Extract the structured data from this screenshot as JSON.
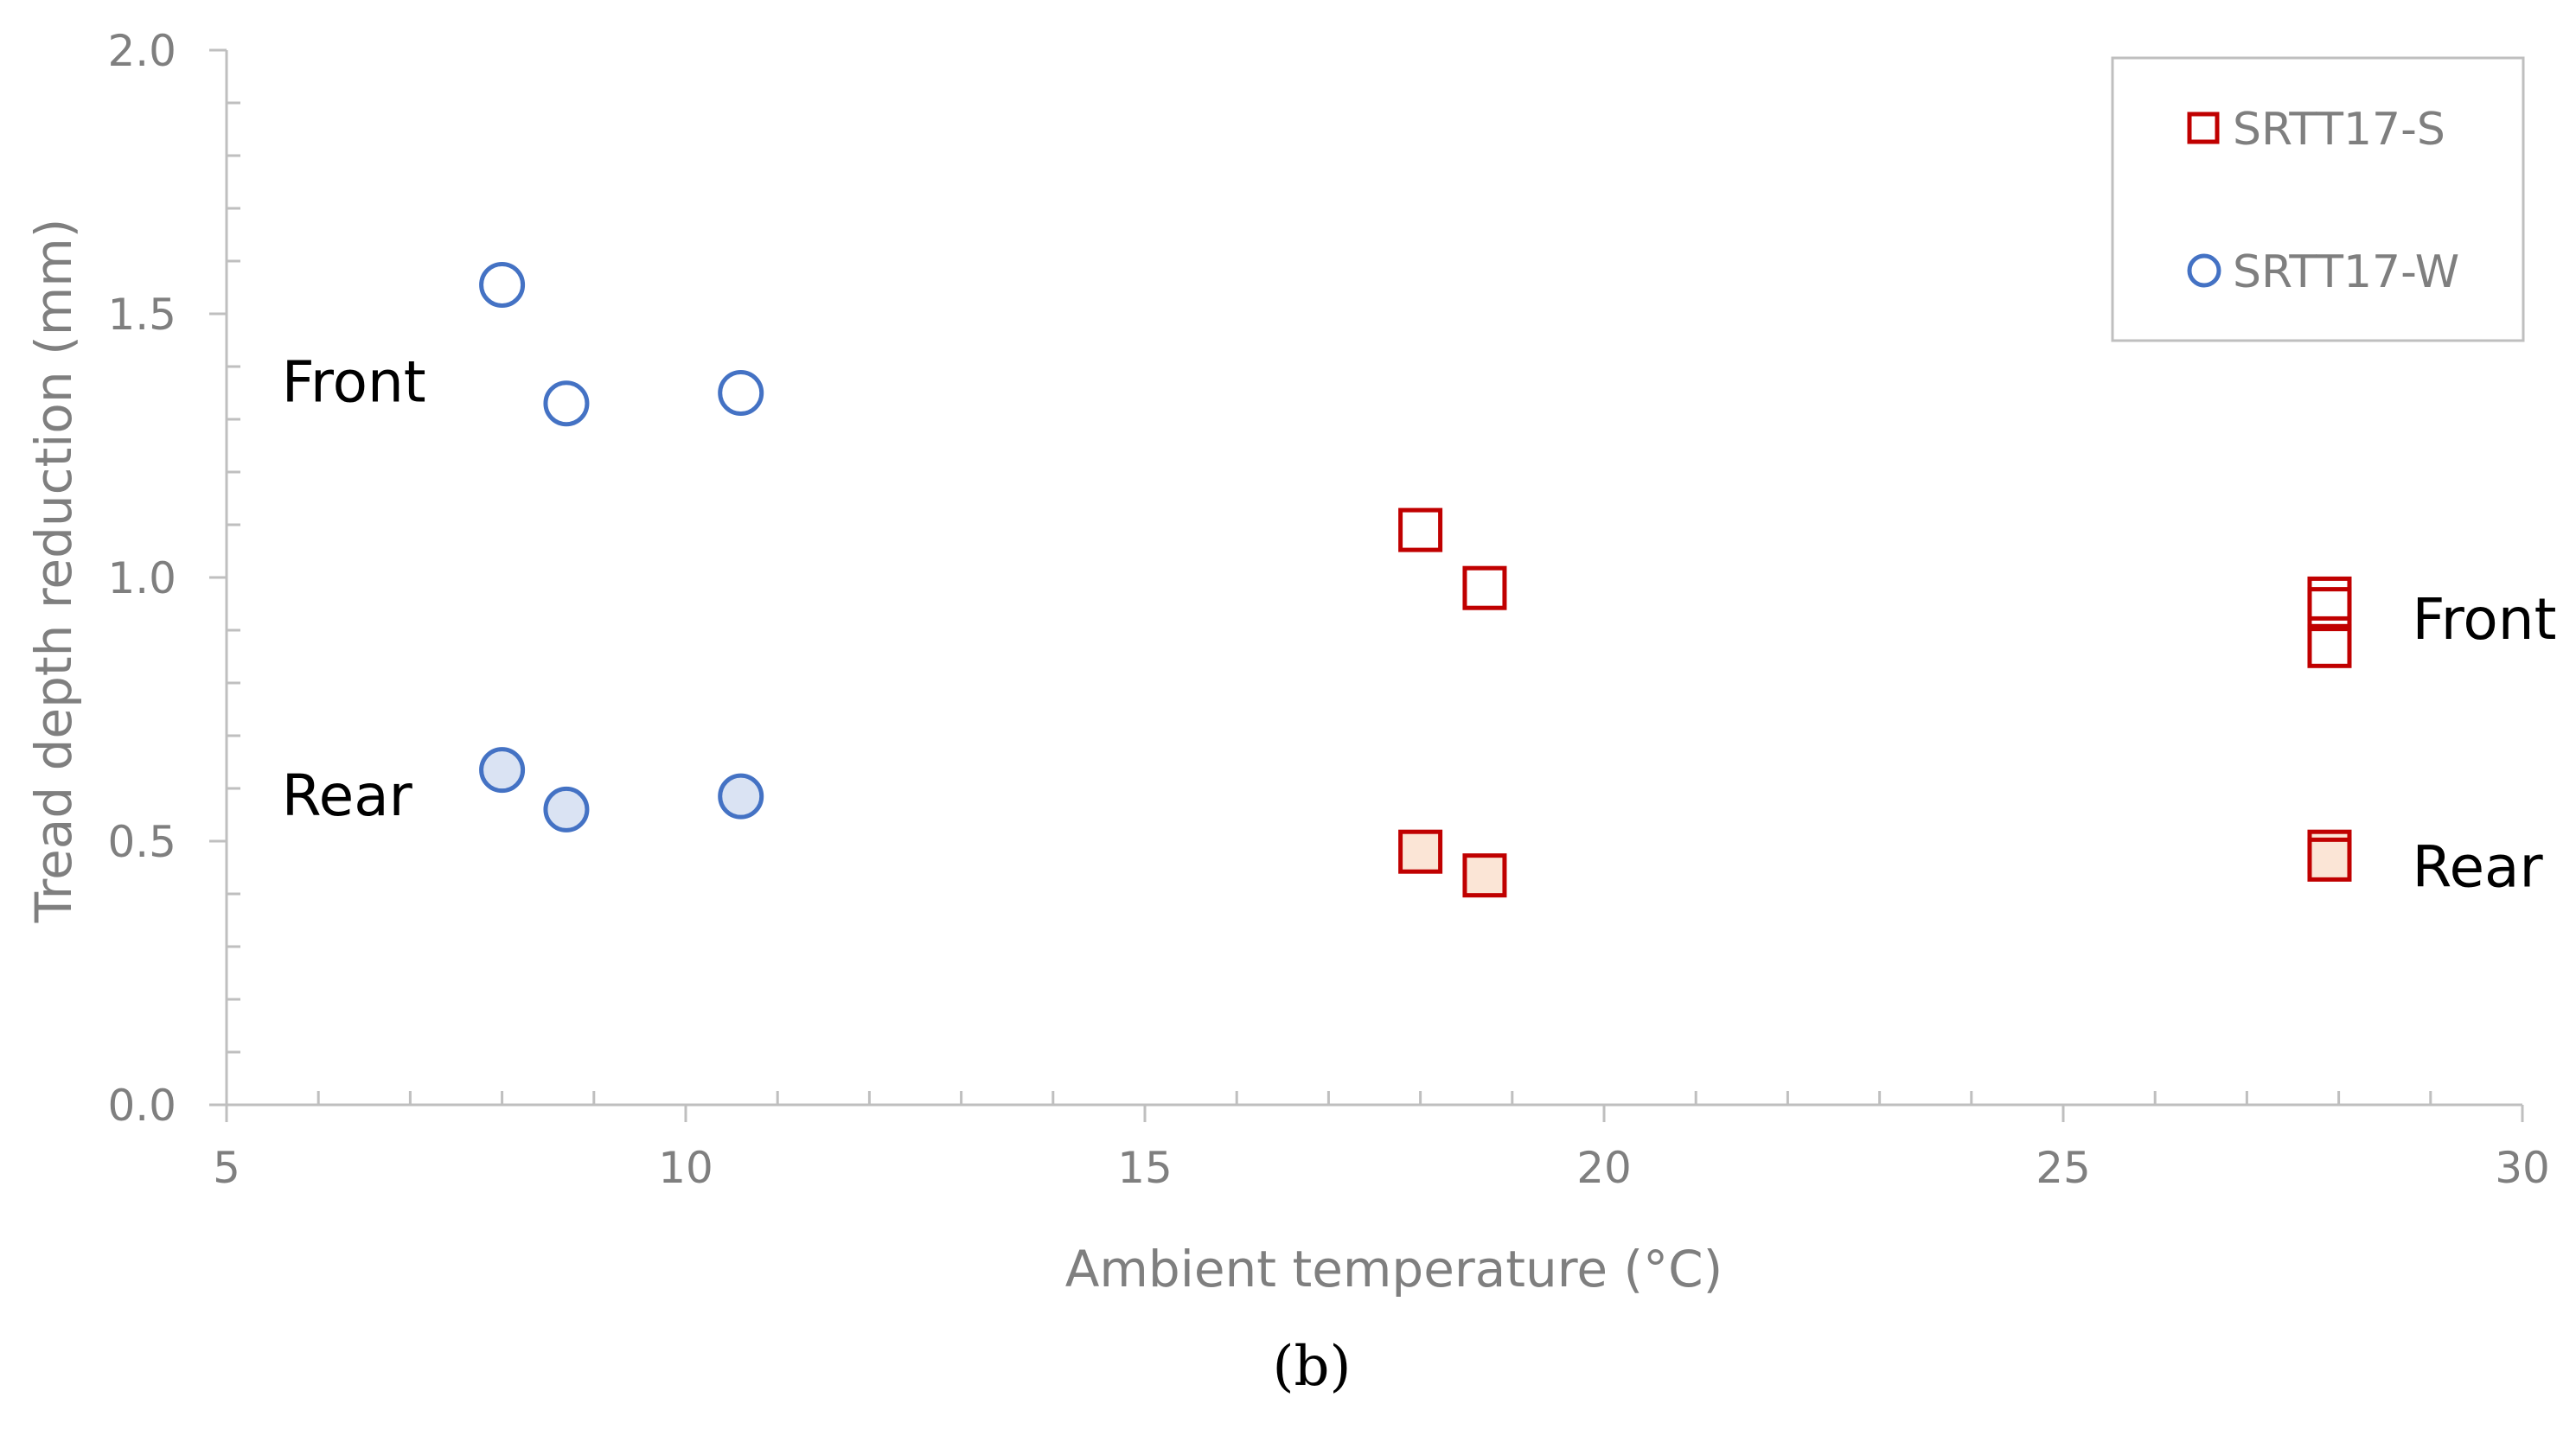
{
  "chart_data": {
    "type": "scatter",
    "xlabel": "Ambient temperature (°C)",
    "ylabel": "Tread depth reduction (mm)",
    "xlim": [
      5,
      30
    ],
    "ylim": [
      0,
      2.0
    ],
    "x_ticks": [
      "5",
      "10",
      "15",
      "20",
      "25",
      "30"
    ],
    "y_ticks": [
      "0.0",
      "0.5",
      "1.0",
      "1.5",
      "2.0"
    ],
    "grid": false,
    "legend_position": "top-right",
    "panel_label": "(b)",
    "series": [
      {
        "name": "SRTT17-S",
        "marker": "square",
        "color": "#c00000",
        "points": [
          {
            "x": 18.0,
            "y": 1.09,
            "group": "Front"
          },
          {
            "x": 18.7,
            "y": 0.98,
            "group": "Front"
          },
          {
            "x": 27.9,
            "y": 0.96,
            "group": "Front"
          },
          {
            "x": 27.9,
            "y": 0.94,
            "group": "Front"
          },
          {
            "x": 27.9,
            "y": 0.87,
            "group": "Front"
          },
          {
            "x": 18.0,
            "y": 0.48,
            "group": "Rear"
          },
          {
            "x": 18.7,
            "y": 0.435,
            "group": "Rear"
          },
          {
            "x": 27.9,
            "y": 0.48,
            "group": "Rear"
          },
          {
            "x": 27.9,
            "y": 0.465,
            "group": "Rear"
          }
        ]
      },
      {
        "name": "SRTT17-W",
        "marker": "circle",
        "color": "#4472c4",
        "points": [
          {
            "x": 8.0,
            "y": 1.555,
            "group": "Front"
          },
          {
            "x": 8.7,
            "y": 1.33,
            "group": "Front"
          },
          {
            "x": 10.6,
            "y": 1.35,
            "group": "Front"
          },
          {
            "x": 8.0,
            "y": 0.635,
            "group": "Rear"
          },
          {
            "x": 8.7,
            "y": 0.56,
            "group": "Rear"
          },
          {
            "x": 10.6,
            "y": 0.585,
            "group": "Rear"
          }
        ]
      }
    ],
    "annotations": [
      {
        "text": "Front",
        "x": 5.6,
        "y": 1.37
      },
      {
        "text": "Rear",
        "x": 5.6,
        "y": 0.585
      },
      {
        "text": "Front",
        "x": 28.8,
        "y": 0.92
      },
      {
        "text": "Rear",
        "x": 28.8,
        "y": 0.45
      }
    ]
  },
  "colors": {
    "axis": "#bfbfbf",
    "text": "#7f7f7f",
    "square_stroke": "#c00000",
    "square_fill_rear": "#fbe5d6",
    "circle_stroke": "#4472c4",
    "circle_fill_rear": "#dae3f3"
  }
}
